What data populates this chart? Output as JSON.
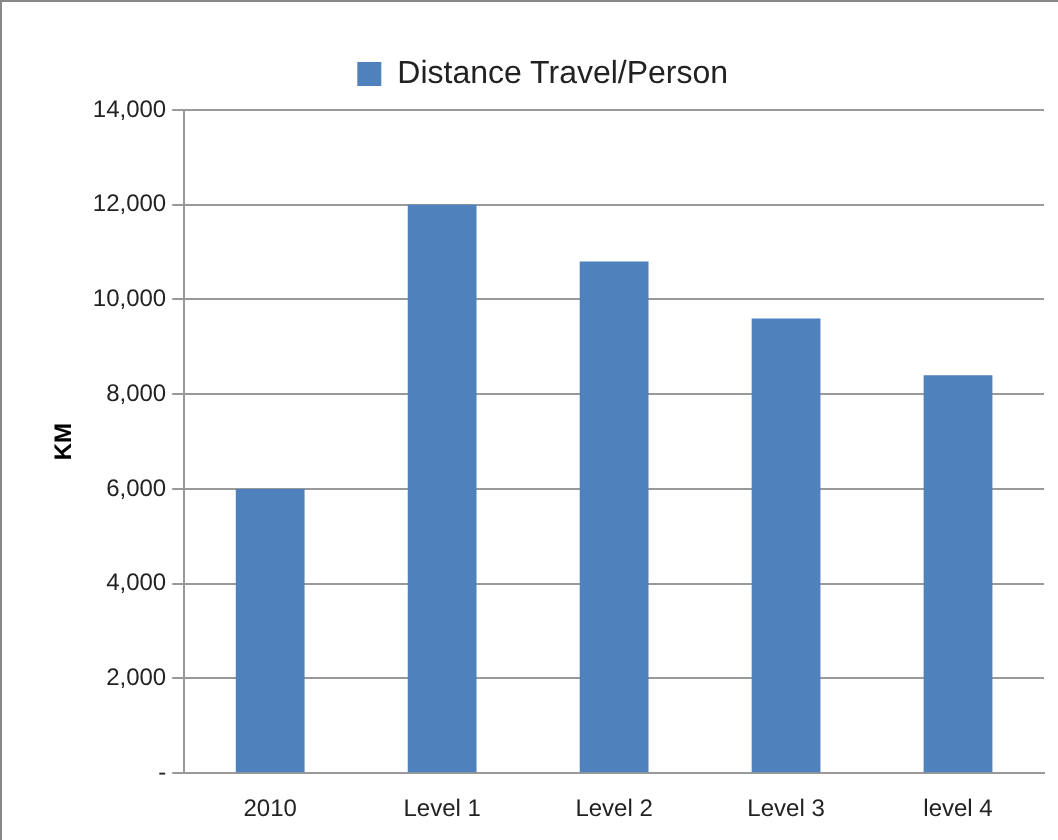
{
  "chart_data": {
    "type": "bar",
    "ylabel": "KM",
    "categories": [
      "2010",
      "Level 1",
      "Level 2",
      "Level 3",
      "level 4"
    ],
    "series": [
      {
        "name": "Distance Travel/Person",
        "color": "#4f81bd",
        "values": [
          6000,
          12000,
          10800,
          9600,
          8400
        ]
      }
    ],
    "ylim": [
      0,
      14000
    ],
    "yticks": [
      {
        "value": 0,
        "label": "-"
      },
      {
        "value": 2000,
        "label": "2,000"
      },
      {
        "value": 4000,
        "label": "4,000"
      },
      {
        "value": 6000,
        "label": "6,000"
      },
      {
        "value": 8000,
        "label": "8,000"
      },
      {
        "value": 10000,
        "label": "10,000"
      },
      {
        "value": 12000,
        "label": "12,000"
      },
      {
        "value": 14000,
        "label": "14,000"
      }
    ],
    "grid": "y",
    "legend": "top"
  }
}
